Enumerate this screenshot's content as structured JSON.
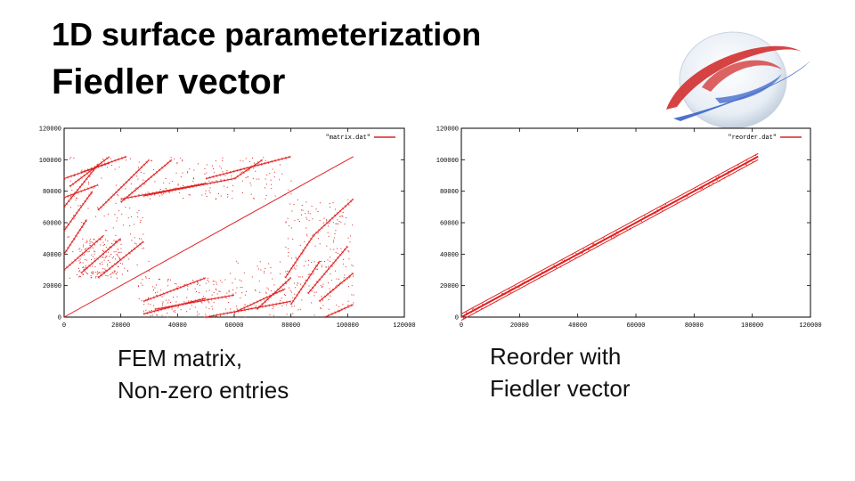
{
  "title_line1": "1D surface parameterization",
  "title_line2": "Fiedler vector",
  "captions": {
    "left_line1": "FEM matrix,",
    "left_line2": "Non-zero entries",
    "right_line1": "Reorder with",
    "right_line2": "Fiedler vector"
  },
  "colors": {
    "points": "#e02020",
    "axis": "#000000",
    "logo_red": "#d22f2f",
    "logo_blue": "#3b63c9"
  },
  "chart_data": [
    {
      "type": "scatter",
      "legend": "\"matrix.dat\"",
      "legend_position": "top-right",
      "xlim": [
        0,
        120000
      ],
      "ylim": [
        0,
        120000
      ],
      "xticks": [
        0,
        20000,
        40000,
        60000,
        80000,
        100000,
        120000
      ],
      "yticks": [
        0,
        20000,
        40000,
        60000,
        80000,
        100000,
        120000
      ],
      "grid": false,
      "diagonal": [
        [
          0,
          0
        ],
        [
          102000,
          102000
        ]
      ],
      "segments": [
        [
          [
            0,
            40000
          ],
          [
            8000,
            62000
          ]
        ],
        [
          [
            0,
            55000
          ],
          [
            10000,
            80000
          ]
        ],
        [
          [
            0,
            70000
          ],
          [
            12000,
            97000
          ]
        ],
        [
          [
            2000,
            83000
          ],
          [
            16000,
            102000
          ]
        ],
        [
          [
            6000,
            92000
          ],
          [
            22000,
            102000
          ]
        ],
        [
          [
            6000,
            28000
          ],
          [
            20000,
            50000
          ]
        ],
        [
          [
            12000,
            25000
          ],
          [
            28000,
            48000
          ]
        ],
        [
          [
            0,
            30000
          ],
          [
            14000,
            52000
          ]
        ],
        [
          [
            12000,
            68000
          ],
          [
            30000,
            100000
          ]
        ],
        [
          [
            20000,
            73000
          ],
          [
            38000,
            100000
          ]
        ],
        [
          [
            20000,
            75000
          ],
          [
            50000,
            85000
          ]
        ],
        [
          [
            28000,
            77000
          ],
          [
            60000,
            88000
          ]
        ],
        [
          [
            50000,
            88000
          ],
          [
            80000,
            102000
          ]
        ],
        [
          [
            60000,
            88000
          ],
          [
            70000,
            100000
          ]
        ],
        [
          [
            0,
            88000
          ],
          [
            16000,
            98000
          ]
        ],
        [
          [
            0,
            76000
          ],
          [
            12000,
            84000
          ]
        ],
        [
          [
            28000,
            10000
          ],
          [
            50000,
            25000
          ]
        ],
        [
          [
            28000,
            2000
          ],
          [
            50000,
            12000
          ]
        ],
        [
          [
            32000,
            5000
          ],
          [
            60000,
            14000
          ]
        ],
        [
          [
            50000,
            0
          ],
          [
            80000,
            10000
          ]
        ],
        [
          [
            60000,
            3000
          ],
          [
            78000,
            18000
          ]
        ],
        [
          [
            68000,
            5000
          ],
          [
            80000,
            25000
          ]
        ],
        [
          [
            78000,
            25000
          ],
          [
            88000,
            52000
          ]
        ],
        [
          [
            80000,
            8000
          ],
          [
            90000,
            35000
          ]
        ],
        [
          [
            86000,
            15000
          ],
          [
            100000,
            45000
          ]
        ],
        [
          [
            88000,
            52000
          ],
          [
            102000,
            75000
          ]
        ],
        [
          [
            90000,
            10000
          ],
          [
            102000,
            28000
          ]
        ],
        [
          [
            92000,
            0
          ],
          [
            102000,
            8000
          ]
        ]
      ],
      "regions": [
        [
          0,
          25000,
          30000,
          102000
        ],
        [
          5000,
          25000,
          20000,
          50000
        ],
        [
          26000,
          0,
          60000,
          26000
        ],
        [
          58000,
          0,
          102000,
          36000
        ],
        [
          78000,
          20000,
          102000,
          75000
        ],
        [
          30000,
          75000,
          80000,
          102000
        ]
      ]
    },
    {
      "type": "line",
      "legend": "\"reorder.dat\"",
      "legend_position": "top-right",
      "xlim": [
        0,
        120000
      ],
      "ylim": [
        0,
        120000
      ],
      "xticks": [
        0,
        20000,
        40000,
        60000,
        80000,
        100000,
        120000
      ],
      "yticks": [
        0,
        20000,
        40000,
        60000,
        80000,
        100000,
        120000
      ],
      "grid": false,
      "x": [
        0,
        102000
      ],
      "y": [
        0,
        102000
      ],
      "band_halfwidth": 2000
    }
  ]
}
